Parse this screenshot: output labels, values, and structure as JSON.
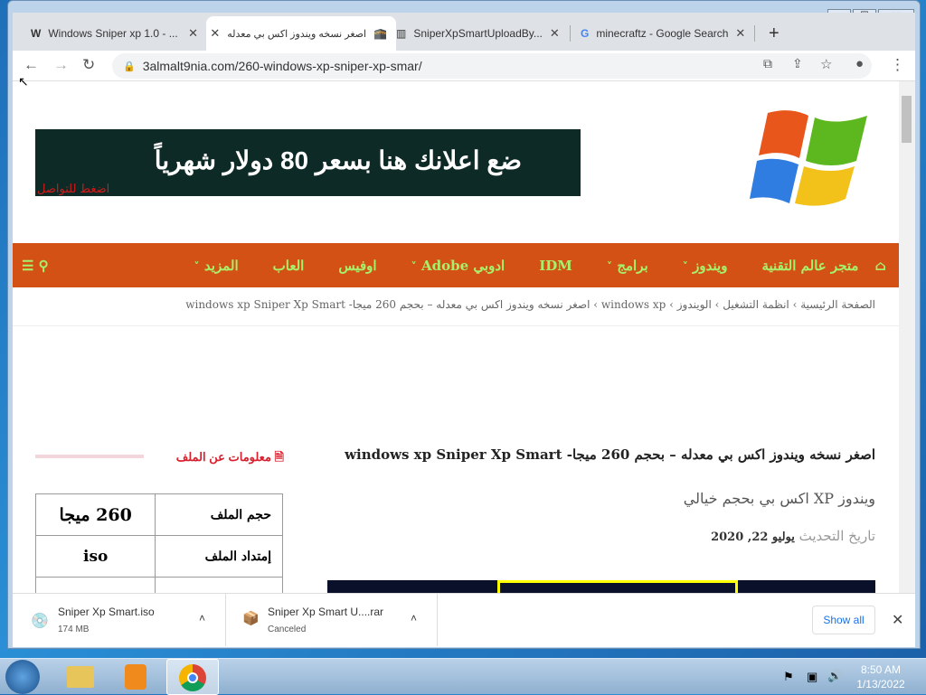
{
  "browser": {
    "tabs": [
      {
        "title": "Windows Sniper xp 1.0 - ...",
        "icon": "w-icon"
      },
      {
        "title": "اصغر نسخه ويندوز اكس بي معدله",
        "icon": "site-icon",
        "active": true
      },
      {
        "title": "SniperXpSmartUploadBy...",
        "icon": "archive-icon"
      },
      {
        "title": "minecraftz - Google Search",
        "icon": "google-icon"
      }
    ],
    "url": "3almalt9nia.com/260-windows-xp-sniper-xp-smar/"
  },
  "site": {
    "ad_text": "ضع اعلانك هنا بسعر 80 دولار شهرياً",
    "ad_sub": "اضغط للتواصل",
    "nav": [
      "متجر عالم التقنية",
      "ويندوز",
      "برامج",
      "IDM",
      "ادوبي Adobe",
      "اوفيس",
      "العاب",
      "المزيد"
    ],
    "nav_dropdown": [
      false,
      true,
      true,
      false,
      true,
      false,
      false,
      true
    ],
    "breadcrumbs": [
      "الصفحة الرئيسية",
      "انظمة التشغيل",
      "الويندوز",
      "windows xp",
      "اصغر نسخه ويندوز اكس بي معدله – بحجم 260 ميجا- windows xp Sniper Xp Smart"
    ],
    "title": "اصغر نسخه ويندوز اكس بي معدله – بحجم 260 ميجا- windows xp Sniper Xp Smart",
    "subtitle": "ويندوز XP اكس بي بحجم خيالي",
    "updated_label": "تاريخ التحديث",
    "updated_date": "يوليو 22, 2020",
    "sidebar_title": "معلومات عن الملف",
    "file_table": [
      {
        "label": "حجم الملف",
        "value": "260 ميجا"
      },
      {
        "label": "إمتداد الملف",
        "value": "iso"
      }
    ],
    "nav_color": "#d35114",
    "nav_text_color": "#a6f06a"
  },
  "downloads": [
    {
      "name": "Sniper Xp Smart.iso",
      "status": "174 MB"
    },
    {
      "name": "Sniper Xp Smart U....rar",
      "status": "Canceled"
    }
  ],
  "show_all": "Show all",
  "taskbar": {
    "time": "8:50 AM",
    "date": "1/13/2022"
  }
}
